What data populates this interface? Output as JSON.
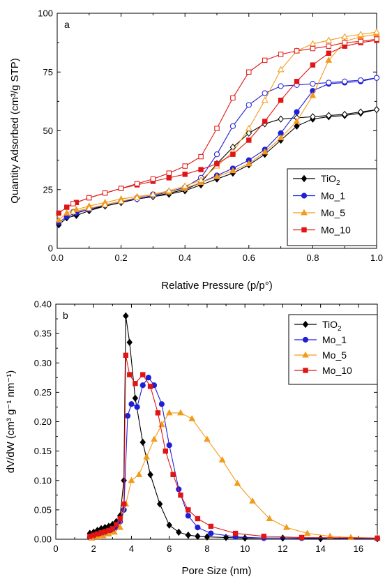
{
  "chart_data": [
    {
      "type": "line",
      "panel_label": "a",
      "xlabel": "Relative Pressure (p/p°)",
      "ylabel": "Quantity Adsorbed (cm³/g STP)",
      "xlim": [
        0,
        1.0
      ],
      "ylim": [
        0,
        100
      ],
      "xticks": [
        0.0,
        0.2,
        0.4,
        0.6,
        0.8,
        1.0
      ],
      "xtick_labels": [
        "0.0",
        "0.2",
        "0.4",
        "0.6",
        "0.8",
        "1.0"
      ],
      "yticks": [
        0,
        25,
        50,
        75,
        100
      ],
      "ytick_labels": [
        "0",
        "25",
        "50",
        "75",
        "100"
      ],
      "grid": false,
      "legend_position": "bottom-right",
      "series": [
        {
          "name": "TiO",
          "name_sub": "2",
          "color": "#000000",
          "marker": "diamond",
          "adsorption": {
            "x": [
              0.005,
              0.03,
              0.06,
              0.1,
              0.15,
              0.2,
              0.25,
              0.3,
              0.35,
              0.4,
              0.45,
              0.5,
              0.55,
              0.6,
              0.65,
              0.7,
              0.75,
              0.8,
              0.85,
              0.9,
              0.95,
              1.0
            ],
            "y": [
              10,
              13,
              14,
              16,
              18,
              19.5,
              21,
              22,
              23,
              24.5,
              27,
              29.5,
              32,
              35.5,
              40,
              46,
              52,
              55,
              56,
              56.5,
              57.5,
              59
            ]
          },
          "desorption": {
            "x": [
              1.0,
              0.95,
              0.9,
              0.85,
              0.8,
              0.75,
              0.7,
              0.65,
              0.6,
              0.55,
              0.5,
              0.45,
              0.4,
              0.35,
              0.3,
              0.25,
              0.2,
              0.15,
              0.1,
              0.05
            ],
            "y": [
              59,
              58,
              57,
              56.5,
              56,
              55.5,
              55,
              53,
              49,
              43,
              36,
              28,
              25,
              23.5,
              22,
              21,
              19.5,
              18,
              16.5,
              15
            ]
          }
        },
        {
          "name": "Mo_1",
          "color": "#1f1fd6",
          "marker": "circle",
          "adsorption": {
            "x": [
              0.005,
              0.03,
              0.06,
              0.1,
              0.15,
              0.2,
              0.25,
              0.3,
              0.35,
              0.4,
              0.45,
              0.5,
              0.55,
              0.6,
              0.65,
              0.7,
              0.75,
              0.8,
              0.85,
              0.9,
              0.95,
              1.0
            ],
            "y": [
              11,
              13.5,
              15,
              16.5,
              18.5,
              20,
              21.5,
              23,
              24,
              25.5,
              28,
              31,
              34,
              37.5,
              42,
              49,
              58,
              67,
              70,
              70.5,
              71,
              72.5
            ]
          },
          "desorption": {
            "x": [
              1.0,
              0.95,
              0.9,
              0.85,
              0.8,
              0.75,
              0.7,
              0.65,
              0.6,
              0.55,
              0.5,
              0.45,
              0.4,
              0.35,
              0.3,
              0.25,
              0.2,
              0.15,
              0.1,
              0.05
            ],
            "y": [
              72.5,
              71.5,
              71,
              70.5,
              70,
              69.5,
              69,
              66,
              61,
              52,
              40,
              30,
              26,
              24,
              22.5,
              21,
              20,
              18.5,
              17,
              15.5
            ]
          }
        },
        {
          "name": "Mo_5",
          "color": "#f39a1a",
          "marker": "triangle",
          "adsorption": {
            "x": [
              0.005,
              0.03,
              0.06,
              0.1,
              0.15,
              0.2,
              0.25,
              0.3,
              0.35,
              0.4,
              0.45,
              0.5,
              0.55,
              0.6,
              0.65,
              0.7,
              0.75,
              0.8,
              0.85,
              0.9,
              0.95,
              1.0
            ],
            "y": [
              12,
              15,
              16.5,
              18,
              19.5,
              21,
              22,
              23,
              24,
              25.5,
              28,
              30.5,
              33,
              36,
              41,
              47,
              54,
              65,
              80,
              88,
              90,
              91
            ]
          },
          "desorption": {
            "x": [
              1.0,
              0.95,
              0.9,
              0.85,
              0.8,
              0.75,
              0.7,
              0.65,
              0.6,
              0.55,
              0.5,
              0.45,
              0.4,
              0.35,
              0.3,
              0.25,
              0.2,
              0.15,
              0.1,
              0.05
            ],
            "y": [
              92,
              91,
              90,
              88.5,
              87,
              84,
              76,
              63,
              51,
              41,
              35,
              29,
              26.5,
              24.5,
              23,
              21.5,
              20,
              18.5,
              17,
              15.5
            ]
          }
        },
        {
          "name": "Mo_10",
          "color": "#e01515",
          "marker": "square",
          "adsorption": {
            "x": [
              0.005,
              0.03,
              0.06,
              0.1,
              0.15,
              0.2,
              0.25,
              0.3,
              0.35,
              0.4,
              0.45,
              0.5,
              0.55,
              0.6,
              0.65,
              0.7,
              0.75,
              0.8,
              0.85,
              0.9,
              0.95,
              1.0
            ],
            "y": [
              15,
              17.5,
              19.5,
              21.5,
              23.5,
              25.5,
              27,
              28.5,
              30,
              31.5,
              33.5,
              36,
              40,
              46,
              54,
              63,
              71,
              78,
              83,
              86,
              87.5,
              88.5
            ]
          },
          "desorption": {
            "x": [
              1.0,
              0.95,
              0.9,
              0.85,
              0.8,
              0.75,
              0.7,
              0.65,
              0.6,
              0.55,
              0.5,
              0.45,
              0.4,
              0.35,
              0.3,
              0.25,
              0.2,
              0.15,
              0.1,
              0.05
            ],
            "y": [
              89,
              88,
              87.5,
              86,
              85,
              84,
              82.5,
              80,
              75,
              64,
              51,
              39,
              35,
              32,
              29.5,
              27.5,
              25.5,
              23.5,
              21.5,
              19
            ]
          }
        }
      ]
    },
    {
      "type": "line",
      "panel_label": "b",
      "xlabel": "Pore Size (nm)",
      "ylabel": "dV/dW (cm³ g⁻¹ nm⁻¹)",
      "xlim": [
        0,
        17
      ],
      "ylim": [
        0,
        0.4
      ],
      "xticks": [
        0,
        2,
        4,
        6,
        8,
        10,
        12,
        14,
        16
      ],
      "xtick_labels": [
        "0",
        "2",
        "4",
        "6",
        "8",
        "10",
        "12",
        "14",
        "16"
      ],
      "yticks": [
        0.0,
        0.05,
        0.1,
        0.15,
        0.2,
        0.25,
        0.3,
        0.35,
        0.4
      ],
      "ytick_labels": [
        "0.00",
        "0.05",
        "0.10",
        "0.15",
        "0.20",
        "0.25",
        "0.30",
        "0.35",
        "0.40"
      ],
      "grid": false,
      "legend_position": "top-right",
      "series": [
        {
          "name": "TiO",
          "name_sub": "2",
          "color": "#000000",
          "marker": "diamond",
          "x": [
            1.8,
            2.0,
            2.2,
            2.4,
            2.6,
            2.8,
            3.0,
            3.2,
            3.4,
            3.6,
            3.7,
            3.9,
            4.2,
            4.6,
            5.0,
            5.5,
            6.0,
            6.5,
            7.0,
            7.5,
            8.0,
            9.0,
            10.0,
            12.0,
            14.0,
            17.0
          ],
          "y": [
            0.01,
            0.012,
            0.015,
            0.018,
            0.02,
            0.022,
            0.025,
            0.03,
            0.04,
            0.1,
            0.38,
            0.335,
            0.24,
            0.165,
            0.11,
            0.06,
            0.024,
            0.012,
            0.007,
            0.005,
            0.004,
            0.003,
            0.002,
            0.002,
            0.001,
            0.001
          ]
        },
        {
          "name": "Mo_1",
          "color": "#1f1fd6",
          "marker": "circle",
          "x": [
            1.8,
            2.0,
            2.2,
            2.4,
            2.6,
            2.8,
            3.0,
            3.2,
            3.4,
            3.6,
            3.8,
            4.0,
            4.3,
            4.6,
            4.9,
            5.2,
            5.6,
            6.0,
            6.5,
            7.0,
            7.5,
            8.2,
            9.5,
            11.0,
            13.0,
            17.0
          ],
          "y": [
            0.003,
            0.005,
            0.007,
            0.009,
            0.011,
            0.013,
            0.016,
            0.02,
            0.03,
            0.05,
            0.21,
            0.23,
            0.225,
            0.262,
            0.275,
            0.262,
            0.23,
            0.16,
            0.085,
            0.04,
            0.02,
            0.01,
            0.004,
            0.002,
            0.002,
            0.001
          ]
        },
        {
          "name": "Mo_5",
          "color": "#f39a1a",
          "marker": "triangle",
          "x": [
            1.9,
            2.2,
            2.5,
            2.8,
            3.1,
            3.4,
            3.7,
            4.0,
            4.4,
            4.8,
            5.2,
            5.6,
            6.0,
            6.6,
            7.2,
            8.0,
            8.8,
            9.6,
            10.4,
            11.3,
            12.2,
            13.3,
            14.5,
            15.6,
            17.0
          ],
          "y": [
            0.002,
            0.004,
            0.006,
            0.009,
            0.012,
            0.02,
            0.06,
            0.1,
            0.11,
            0.14,
            0.17,
            0.195,
            0.215,
            0.215,
            0.205,
            0.17,
            0.135,
            0.095,
            0.065,
            0.035,
            0.02,
            0.01,
            0.005,
            0.003,
            0.002
          ]
        },
        {
          "name": "Mo_10",
          "color": "#e01515",
          "marker": "square",
          "x": [
            1.8,
            2.0,
            2.2,
            2.4,
            2.6,
            2.8,
            3.0,
            3.2,
            3.4,
            3.6,
            3.7,
            3.9,
            4.2,
            4.6,
            5.0,
            5.4,
            5.8,
            6.2,
            6.6,
            7.0,
            7.5,
            8.2,
            9.5,
            11.0,
            13.0,
            17.0
          ],
          "y": [
            0.005,
            0.007,
            0.009,
            0.011,
            0.013,
            0.015,
            0.018,
            0.025,
            0.035,
            0.06,
            0.313,
            0.28,
            0.265,
            0.28,
            0.26,
            0.215,
            0.15,
            0.11,
            0.075,
            0.05,
            0.035,
            0.022,
            0.01,
            0.005,
            0.003,
            0.002
          ]
        }
      ]
    }
  ]
}
